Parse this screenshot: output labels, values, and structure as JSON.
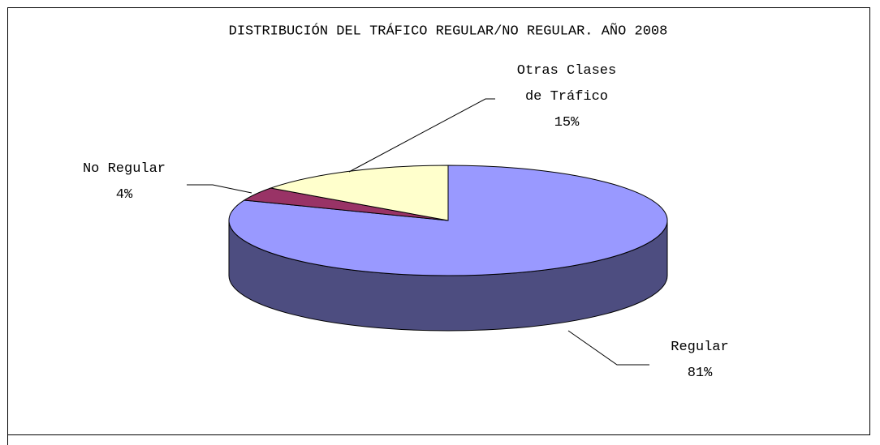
{
  "chart_data": {
    "type": "pie3d",
    "title": "DISTRIBUCIÓN DEL TRÁFICO REGULAR/NO REGULAR. AÑO 2008",
    "categories": [
      "Regular",
      "No Regular",
      "Otras Clases de Tráfico"
    ],
    "values": [
      81,
      4,
      15
    ],
    "value_labels": [
      "81%",
      "4%",
      "15%"
    ],
    "colors": [
      "#9999ff",
      "#993366",
      "#ffffcc"
    ]
  }
}
